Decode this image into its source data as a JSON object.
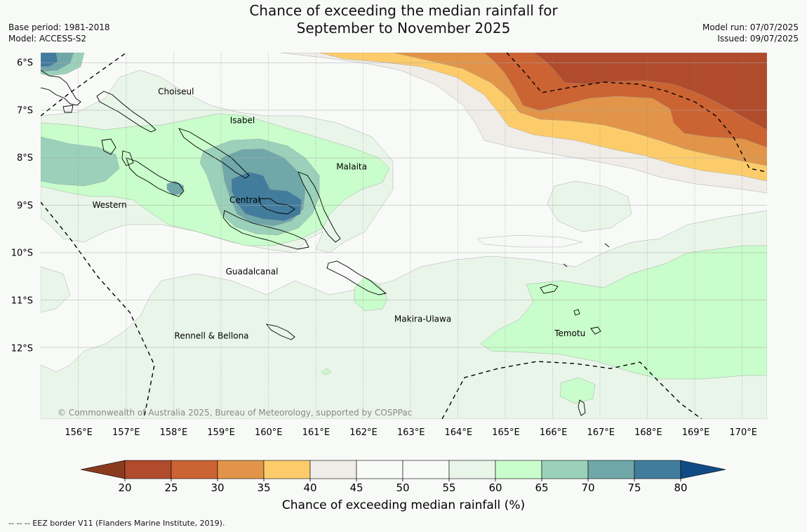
{
  "title": {
    "line1": "Chance of exceeding the median rainfall for",
    "line2": "September to November 2025"
  },
  "meta": {
    "base_period": "Base period: 1981-2018",
    "model": "Model: ACCESS-S2",
    "model_run": "Model run: 07/07/2025",
    "issued": "Issued: 09/07/2025"
  },
  "map": {
    "lat_labels": [
      "6°S",
      "7°S",
      "8°S",
      "9°S",
      "10°S",
      "11°S",
      "12°S"
    ],
    "lon_labels": [
      "156°E",
      "157°E",
      "158°E",
      "159°E",
      "160°E",
      "161°E",
      "162°E",
      "163°E",
      "164°E",
      "165°E",
      "166°E",
      "167°E",
      "168°E",
      "169°E",
      "170°E"
    ],
    "places": [
      {
        "name": "Choiseul",
        "lon": 158.05,
        "lat": -6.62
      },
      {
        "name": "Isabel",
        "lon": 159.45,
        "lat": -7.22
      },
      {
        "name": "Malaita",
        "lon": 161.75,
        "lat": -8.2
      },
      {
        "name": "Western",
        "lon": 156.65,
        "lat": -9.0
      },
      {
        "name": "Central",
        "lon": 159.5,
        "lat": -8.9
      },
      {
        "name": "Guadalcanal",
        "lon": 159.65,
        "lat": -10.4
      },
      {
        "name": "Makira-Ulawa",
        "lon": 163.25,
        "lat": -11.4
      },
      {
        "name": "Rennell & Bellona",
        "lon": 158.8,
        "lat": -11.75
      },
      {
        "name": "Temotu",
        "lon": 166.35,
        "lat": -11.7
      }
    ],
    "copyright": "© Commonwealth of Australia 2025, Bureau of Meteorology, supported by COSPPac",
    "colors": {
      "c20_25": "#b04b2b",
      "c25_30": "#cc6332",
      "c30_35": "#e29548",
      "c35_40": "#fdcc6a",
      "c40_45": "#f0ede8",
      "c45_55": "#f8faf8",
      "c55_60": "#eaf5ea",
      "c60_65": "#c9fdcb",
      "c65_70": "#9bd1bb",
      "c70_75": "#70a7a9",
      "c75_80": "#427c9d",
      "over80": "#104b86"
    }
  },
  "colorbar": {
    "ticks": [
      "20",
      "25",
      "30",
      "35",
      "40",
      "45",
      "50",
      "55",
      "60",
      "65",
      "70",
      "75",
      "80"
    ],
    "label": "Chance of exceeding median rainfall (%)"
  },
  "footer": "--  --  -- EEZ border V11 (Flanders Marine Institute, 2019)."
}
